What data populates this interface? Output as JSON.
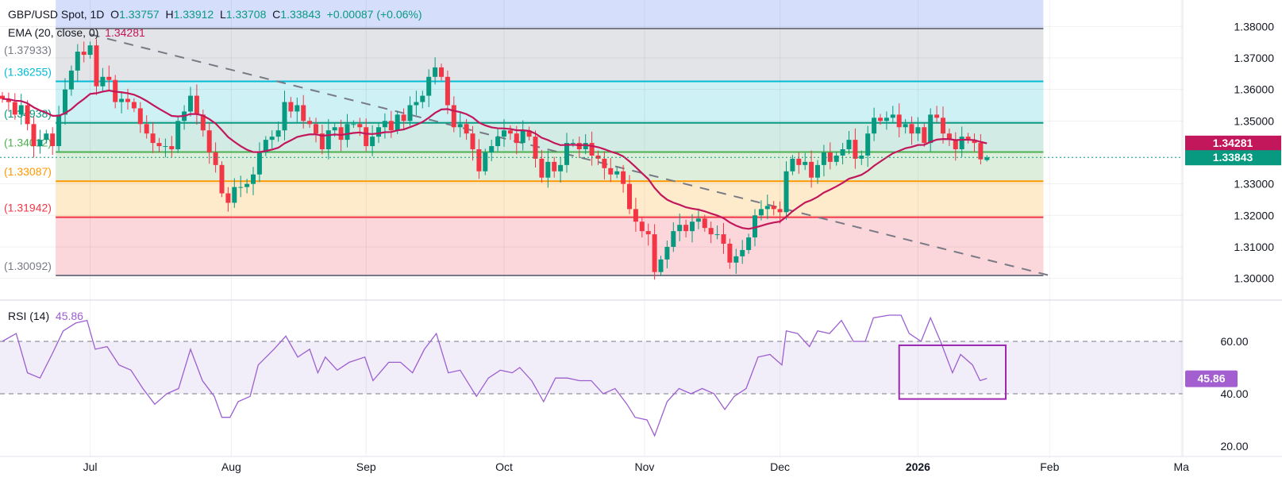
{
  "legend": {
    "symbol": "GBP/USD Spot, 1D",
    "o_label": "O",
    "o": "1.33757",
    "h_label": "H",
    "h": "1.33912",
    "l_label": "L",
    "l": "1.33708",
    "c_label": "C",
    "c": "1.33843",
    "change": "+0.00087 (+0.06%)",
    "ema_label": "EMA (20, close, 0)",
    "ema_value": "1.34281"
  },
  "rsi_legend": {
    "label": "RSI (14)",
    "value": "45.86"
  },
  "colors": {
    "up": "#089981",
    "down": "#f23645",
    "ema": "#c2185b",
    "rsi": "#9c5fd0",
    "rsi_badge": "#a35fd0",
    "last_price": "#089981",
    "trendline": "#787b86"
  },
  "chart_data": [
    {
      "type": "candlestick",
      "title": "GBP/USD Spot, 1D",
      "y_ticks": [
        "1.38000",
        "1.37000",
        "1.36000",
        "1.35000",
        "1.33000",
        "1.32000",
        "1.31000",
        "1.30000"
      ],
      "x_ticks": [
        {
          "label": "Jul",
          "bar": 14
        },
        {
          "label": "Aug",
          "bar": 36.5
        },
        {
          "label": "Sep",
          "bar": 58
        },
        {
          "label": "Oct",
          "bar": 80
        },
        {
          "label": "Nov",
          "bar": 102.4
        },
        {
          "label": "Dec",
          "bar": 124
        },
        {
          "label": "2026",
          "bar": 146,
          "bold": true
        },
        {
          "label": "Feb",
          "bar": 167
        },
        {
          "label": "Ma",
          "bar": 188
        }
      ],
      "ylim": [
        1.3,
        1.38
      ],
      "grid": true,
      "close": [
        1.357,
        1.356,
        1.352,
        1.355,
        1.349,
        1.342,
        1.344,
        1.346,
        1.342,
        1.352,
        1.36,
        1.366,
        1.372,
        1.371,
        1.374,
        1.361,
        1.364,
        1.363,
        1.356,
        1.357,
        1.356,
        1.354,
        1.349,
        1.346,
        1.343,
        1.342,
        1.342,
        1.341,
        1.35,
        1.353,
        1.358,
        1.352,
        1.347,
        1.34,
        1.336,
        1.327,
        1.324,
        1.329,
        1.329,
        1.33,
        1.333,
        1.34,
        1.344,
        1.345,
        1.347,
        1.356,
        1.353,
        1.355,
        1.35,
        1.349,
        1.346,
        1.341,
        1.347,
        1.348,
        1.344,
        1.349,
        1.349,
        1.348,
        1.342,
        1.345,
        1.348,
        1.35,
        1.347,
        1.352,
        1.35,
        1.355,
        1.356,
        1.358,
        1.364,
        1.367,
        1.364,
        1.355,
        1.348,
        1.349,
        1.346,
        1.341,
        1.334,
        1.34,
        1.342,
        1.345,
        1.347,
        1.346,
        1.343,
        1.347,
        1.345,
        1.338,
        1.332,
        1.337,
        1.334,
        1.336,
        1.343,
        1.343,
        1.341,
        1.343,
        1.339,
        1.338,
        1.335,
        1.333,
        1.334,
        1.33,
        1.322,
        1.318,
        1.315,
        1.314,
        1.302,
        1.306,
        1.31,
        1.315,
        1.317,
        1.315,
        1.318,
        1.319,
        1.316,
        1.314,
        1.314,
        1.311,
        1.305,
        1.307,
        1.309,
        1.313,
        1.32,
        1.322,
        1.323,
        1.322,
        1.321,
        1.334,
        1.338,
        1.336,
        1.337,
        1.332,
        1.336,
        1.34,
        1.337,
        1.339,
        1.341,
        1.344,
        1.338,
        1.339,
        1.346,
        1.351,
        1.35,
        1.351,
        1.352,
        1.348,
        1.349,
        1.346,
        1.348,
        1.343,
        1.352,
        1.351,
        1.346,
        1.344,
        1.341,
        1.345,
        1.344,
        1.343,
        1.3378,
        1.33843
      ],
      "last_bar": {
        "open": 1.33757,
        "high": 1.33912,
        "low": 1.33708,
        "close": 1.33843
      },
      "ema": {
        "period": 20,
        "value": 1.34281
      },
      "last_price_label": "1.33843",
      "ema_price_label": "1.34281",
      "fib_levels": [
        {
          "value": 1.37933,
          "label": "(1.37933)",
          "color": "#787b86",
          "band": "#e3e4e7"
        },
        {
          "value": 1.36255,
          "label": "(1.36255)",
          "color": "#00bcd4",
          "band": "#cdf1f5"
        },
        {
          "value": 1.34938,
          "label": "(1.34938)",
          "color": "#089981",
          "band": "#d2ebe5"
        },
        {
          "value": 1.34012,
          "label": "(1.34012)",
          "color": "#4caf50",
          "band": "#ddefdc"
        },
        {
          "value": 1.33087,
          "label": "(1.33087)",
          "color": "#ff9800",
          "band": "#feebcc"
        },
        {
          "value": 1.31942,
          "label": "(1.31942)",
          "color": "#f23645",
          "band": "#fbd6da"
        },
        {
          "value": 1.30092,
          "label": "(1.30092)",
          "color": "#787b86",
          "band": null
        }
      ],
      "fib_top_band": "#d5dffb",
      "fib_range_bars": [
        8.5,
        166
      ],
      "trendline": [
        [
          14,
          1.3775
        ],
        [
          167,
          1.3009
        ]
      ]
    },
    {
      "type": "line",
      "title": "RSI (14)",
      "y_ticks": [
        "60.00",
        "40.00",
        "20.00"
      ],
      "ylim": [
        15,
        75
      ],
      "band": [
        40,
        60
      ],
      "current": "45.86",
      "points": [
        [
          0,
          60
        ],
        [
          2.2,
          63
        ],
        [
          4,
          48
        ],
        [
          6,
          46
        ],
        [
          7.9,
          55
        ],
        [
          9.7,
          64
        ],
        [
          11.7,
          67
        ],
        [
          13.5,
          68
        ],
        [
          14.8,
          57
        ],
        [
          16.7,
          58
        ],
        [
          18.6,
          51
        ],
        [
          20.5,
          49
        ],
        [
          22.4,
          42
        ],
        [
          24.3,
          36
        ],
        [
          26.2,
          40
        ],
        [
          28.1,
          42
        ],
        [
          30,
          57
        ],
        [
          31.9,
          45
        ],
        [
          33.8,
          39
        ],
        [
          35,
          31
        ],
        [
          36.3,
          31
        ],
        [
          37.6,
          37
        ],
        [
          39.5,
          39
        ],
        [
          40.8,
          51
        ],
        [
          43.3,
          57
        ],
        [
          45.2,
          62
        ],
        [
          47.1,
          54
        ],
        [
          49,
          57
        ],
        [
          50.3,
          48
        ],
        [
          51.5,
          54
        ],
        [
          53.4,
          49
        ],
        [
          55.3,
          52
        ],
        [
          57.8,
          54
        ],
        [
          59.1,
          45
        ],
        [
          61.6,
          52
        ],
        [
          63.5,
          52
        ],
        [
          65.4,
          48
        ],
        [
          67.3,
          57
        ],
        [
          69.2,
          63
        ],
        [
          71.1,
          48
        ],
        [
          73,
          49
        ],
        [
          75.6,
          39
        ],
        [
          77.5,
          46
        ],
        [
          79.4,
          49
        ],
        [
          81.3,
          48
        ],
        [
          82.5,
          50
        ],
        [
          84.4,
          45
        ],
        [
          86.3,
          37
        ],
        [
          88.2,
          46
        ],
        [
          90.1,
          46
        ],
        [
          92,
          45
        ],
        [
          93.9,
          45
        ],
        [
          95.8,
          40
        ],
        [
          97.7,
          42
        ],
        [
          99.6,
          36
        ],
        [
          100.9,
          31
        ],
        [
          102.8,
          30
        ],
        [
          104,
          24
        ],
        [
          106,
          37
        ],
        [
          107.9,
          42
        ],
        [
          109.8,
          40
        ],
        [
          111.6,
          42
        ],
        [
          113.5,
          40
        ],
        [
          115.2,
          34
        ],
        [
          116.7,
          39
        ],
        [
          118.6,
          42
        ],
        [
          120.5,
          54
        ],
        [
          122.4,
          55
        ],
        [
          124.3,
          51
        ],
        [
          125,
          64
        ],
        [
          126.8,
          63
        ],
        [
          128.7,
          58
        ],
        [
          130,
          64
        ],
        [
          131.9,
          63
        ],
        [
          133.8,
          68
        ],
        [
          135.7,
          60
        ],
        [
          137.6,
          60
        ],
        [
          138.9,
          69
        ],
        [
          141.4,
          70
        ],
        [
          143.3,
          70
        ],
        [
          144.6,
          63
        ],
        [
          146.5,
          60
        ],
        [
          148,
          69
        ],
        [
          149.6,
          60
        ],
        [
          151.5,
          48
        ],
        [
          152.8,
          55
        ],
        [
          154.7,
          51
        ],
        [
          155.9,
          45
        ],
        [
          157,
          45.86
        ]
      ],
      "highlight_box": {
        "bars": [
          143,
          160
        ],
        "rsi": [
          38,
          58.5
        ],
        "color": "#9c27b0"
      }
    }
  ]
}
